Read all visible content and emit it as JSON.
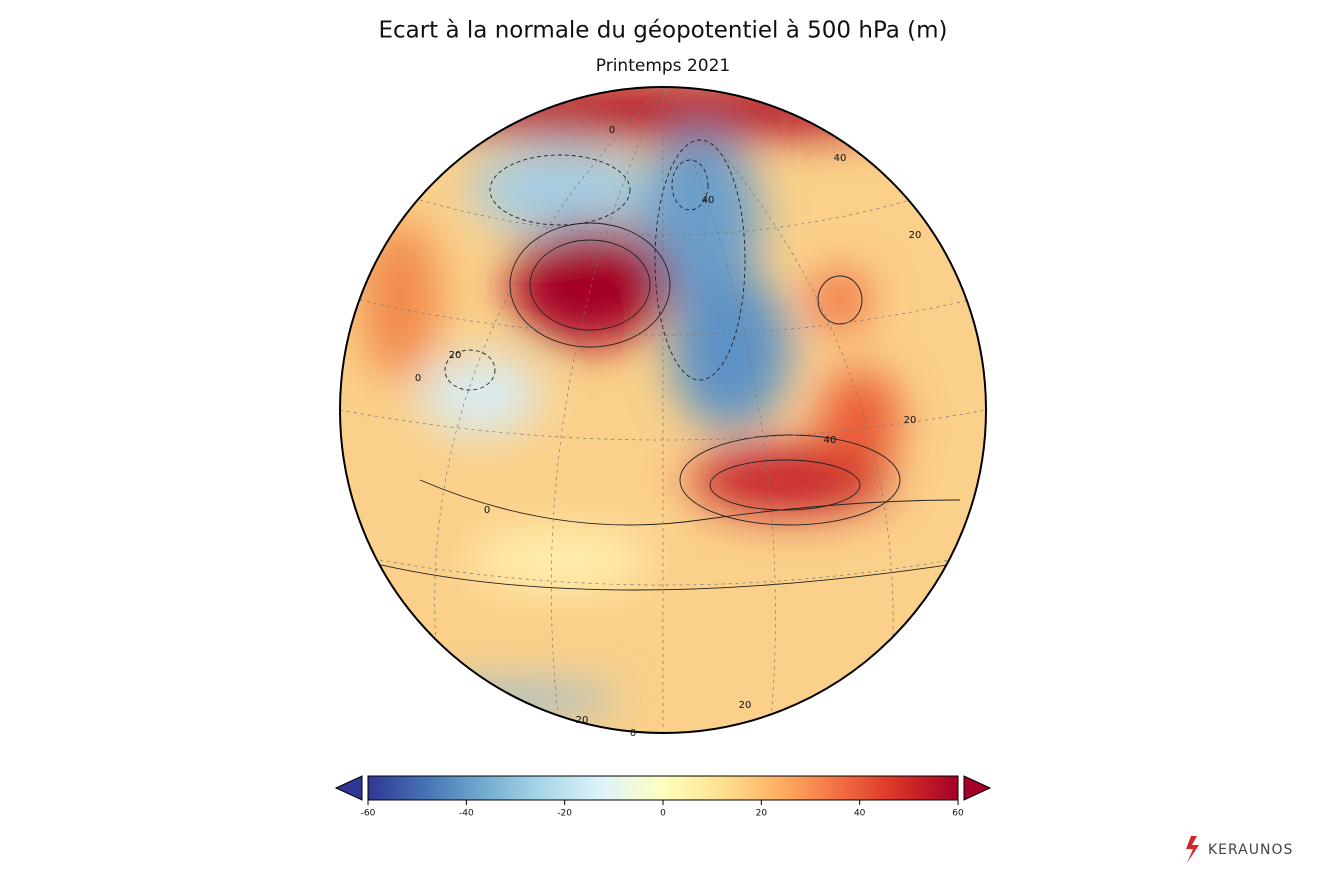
{
  "title": "Ecart à la normale du géopotentiel à 500 hPa (m)",
  "subtitle": "Printemps 2021",
  "contour_labels": [
    0,
    40,
    20,
    40,
    20,
    0,
    0,
    40,
    20,
    20,
    20,
    0
  ],
  "colorbar": {
    "vmin": -60,
    "vmax": 60,
    "ticks": [
      -60,
      -40,
      -20,
      0,
      20,
      40,
      60
    ],
    "colors": [
      "#313695",
      "#4575b4",
      "#74add1",
      "#abd9e9",
      "#e0f3f8",
      "#ffffbf",
      "#fee090",
      "#fdae61",
      "#f46d43",
      "#d73027",
      "#a50026"
    ],
    "extend": "both"
  },
  "brand": "KERAUNOS"
}
